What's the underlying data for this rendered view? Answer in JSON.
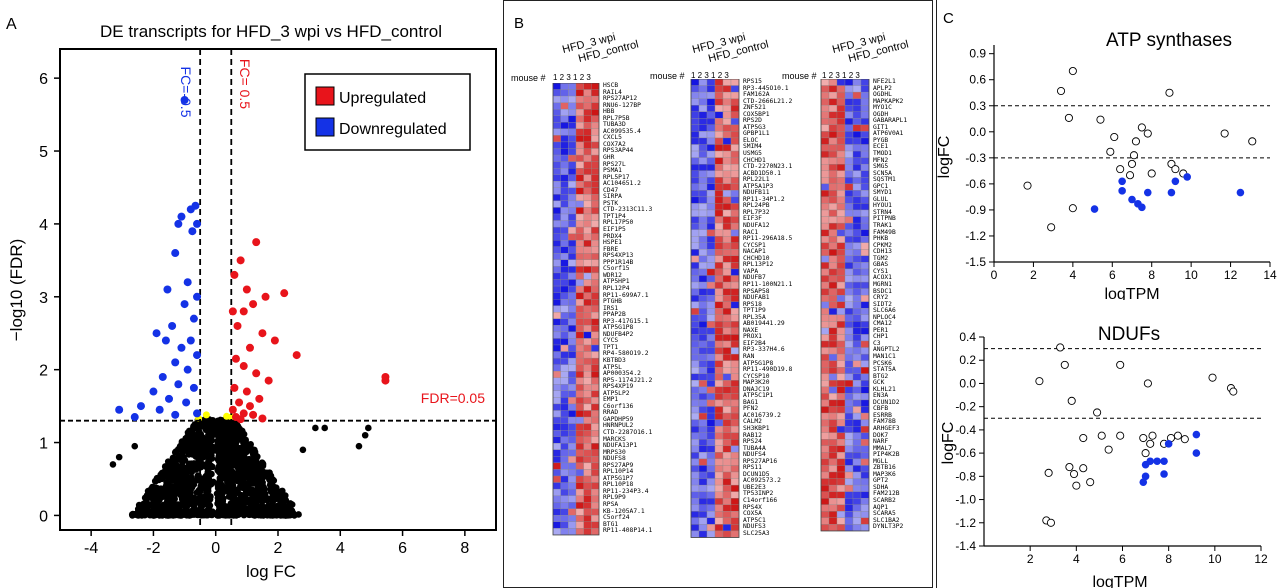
{
  "panel_labels": {
    "a": "A",
    "b": "B",
    "c": "C"
  },
  "chart_data": [
    {
      "type": "scatter",
      "title": "DE transcripts for HFD_3 wpi vs HFD_control",
      "xlabel": "log FC",
      "ylabel": "−log10 (FDR)",
      "xlim": [
        -5,
        9
      ],
      "ylim": [
        -0.2,
        6.4
      ],
      "xticks": [
        "-4",
        "-2",
        "0",
        "2",
        "4",
        "6",
        "8"
      ],
      "yticks": [
        "0",
        "1",
        "2",
        "3",
        "4",
        "5",
        "6"
      ],
      "legend": {
        "placement": "top-right",
        "entries": [
          {
            "name": "Upregulated",
            "color": "#e8141b"
          },
          {
            "name": "Downregulated",
            "color": "#1432e6"
          }
        ]
      },
      "annotations": {
        "fc_neg": "FC=-0.5",
        "fc_pos": "FC= 0.5",
        "fdr": "FDR=0.05"
      },
      "thresholds": {
        "fc": 0.5,
        "fdr_y": 1.3
      },
      "up_points": [
        [
          0.8,
          3.5
        ],
        [
          1.3,
          3.75
        ],
        [
          0.6,
          3.3
        ],
        [
          1.0,
          3.1
        ],
        [
          1.6,
          3.0
        ],
        [
          2.2,
          3.05
        ],
        [
          2.6,
          2.2
        ],
        [
          5.45,
          1.9
        ],
        [
          5.45,
          1.85
        ],
        [
          1.2,
          2.9
        ],
        [
          0.9,
          2.8
        ],
        [
          0.55,
          2.8
        ],
        [
          0.7,
          2.6
        ],
        [
          1.5,
          2.5
        ],
        [
          1.9,
          2.4
        ],
        [
          1.1,
          2.3
        ],
        [
          0.65,
          2.15
        ],
        [
          0.9,
          2.05
        ],
        [
          1.3,
          1.95
        ],
        [
          1.7,
          1.85
        ],
        [
          0.6,
          1.75
        ],
        [
          1.0,
          1.7
        ],
        [
          1.4,
          1.6
        ],
        [
          0.75,
          1.55
        ],
        [
          1.1,
          1.5
        ],
        [
          0.55,
          1.45
        ],
        [
          0.9,
          1.4
        ],
        [
          1.2,
          1.38
        ],
        [
          0.65,
          1.35
        ],
        [
          1.5,
          1.33
        ],
        [
          0.8,
          1.32
        ]
      ],
      "down_points": [
        [
          -1.0,
          5.7
        ],
        [
          -0.65,
          4.25
        ],
        [
          -0.8,
          4.2
        ],
        [
          -0.6,
          4.0
        ],
        [
          -0.75,
          3.9
        ],
        [
          -1.1,
          4.1
        ],
        [
          -1.2,
          4.0
        ],
        [
          -1.3,
          3.6
        ],
        [
          -1.55,
          3.1
        ],
        [
          -0.9,
          3.2
        ],
        [
          -0.6,
          3.0
        ],
        [
          -1.0,
          2.9
        ],
        [
          -0.7,
          2.7
        ],
        [
          -1.4,
          2.6
        ],
        [
          -1.9,
          2.5
        ],
        [
          -1.6,
          2.4
        ],
        [
          -0.8,
          2.4
        ],
        [
          -1.1,
          2.3
        ],
        [
          -0.6,
          2.2
        ],
        [
          -1.3,
          2.1
        ],
        [
          -0.9,
          2.0
        ],
        [
          -1.7,
          1.9
        ],
        [
          -1.2,
          1.8
        ],
        [
          -0.7,
          1.75
        ],
        [
          -2.0,
          1.7
        ],
        [
          -1.5,
          1.6
        ],
        [
          -0.95,
          1.55
        ],
        [
          -2.4,
          1.5
        ],
        [
          -3.1,
          1.45
        ],
        [
          -1.8,
          1.45
        ],
        [
          -0.6,
          1.4
        ],
        [
          -1.3,
          1.38
        ],
        [
          -2.6,
          1.35
        ]
      ]
    },
    {
      "type": "scatter",
      "title": "ATP synthases",
      "xlabel": "logTPM",
      "ylabel": "logFC",
      "xlim": [
        0,
        14
      ],
      "ylim": [
        -1.5,
        1.0
      ],
      "xticks": [
        "0",
        "2",
        "4",
        "6",
        "8",
        "10",
        "12",
        "14"
      ],
      "yticks": [
        "0.9",
        "0.6",
        "0.3",
        "0.0",
        "-0.3",
        "-0.6",
        "-0.9",
        "-1.2",
        "-1.5"
      ],
      "hlines": [
        0.3,
        -0.3
      ],
      "open_points": [
        [
          4.0,
          0.7
        ],
        [
          3.4,
          0.47
        ],
        [
          8.9,
          0.45
        ],
        [
          3.8,
          0.16
        ],
        [
          5.4,
          0.14
        ],
        [
          7.5,
          0.05
        ],
        [
          7.8,
          -0.02
        ],
        [
          11.7,
          -0.02
        ],
        [
          6.1,
          -0.06
        ],
        [
          7.2,
          -0.11
        ],
        [
          13.1,
          -0.11
        ],
        [
          5.9,
          -0.23
        ],
        [
          7.1,
          -0.27
        ],
        [
          7.0,
          -0.37
        ],
        [
          6.4,
          -0.43
        ],
        [
          9.0,
          -0.37
        ],
        [
          9.2,
          -0.43
        ],
        [
          9.6,
          -0.48
        ],
        [
          6.9,
          -0.5
        ],
        [
          8.0,
          -0.48
        ],
        [
          1.7,
          -0.62
        ],
        [
          4.0,
          -0.88
        ],
        [
          2.9,
          -1.1
        ]
      ],
      "filled_points": [
        [
          6.5,
          -0.57
        ],
        [
          9.2,
          -0.57
        ],
        [
          9.8,
          -0.52
        ],
        [
          6.5,
          -0.68
        ],
        [
          7.0,
          -0.78
        ],
        [
          7.8,
          -0.7
        ],
        [
          7.3,
          -0.83
        ],
        [
          7.5,
          -0.87
        ],
        [
          5.1,
          -0.89
        ],
        [
          9.0,
          -0.7
        ],
        [
          12.5,
          -0.7
        ]
      ]
    },
    {
      "type": "scatter",
      "title": "NDUFs",
      "xlabel": "logTPM",
      "ylabel": "logFC",
      "xlim": [
        0,
        12
      ],
      "ylim": [
        -1.4,
        0.4
      ],
      "xticks": [
        "2",
        "4",
        "6",
        "8",
        "10",
        "12"
      ],
      "yticks": [
        "0.4",
        "0.2",
        "0.0",
        "-0.2",
        "-0.4",
        "-0.6",
        "-0.8",
        "-1.0",
        "-1.2",
        "-1.4"
      ],
      "hlines": [
        0.3,
        -0.3
      ],
      "open_points": [
        [
          3.3,
          0.31
        ],
        [
          3.5,
          0.16
        ],
        [
          5.9,
          0.16
        ],
        [
          9.9,
          0.05
        ],
        [
          2.4,
          0.02
        ],
        [
          7.1,
          0.0
        ],
        [
          10.7,
          -0.04
        ],
        [
          10.8,
          -0.07
        ],
        [
          3.8,
          -0.15
        ],
        [
          4.9,
          -0.25
        ],
        [
          4.3,
          -0.47
        ],
        [
          5.1,
          -0.45
        ],
        [
          5.9,
          -0.45
        ],
        [
          6.9,
          -0.47
        ],
        [
          7.3,
          -0.45
        ],
        [
          8.1,
          -0.47
        ],
        [
          8.4,
          -0.45
        ],
        [
          8.7,
          -0.48
        ],
        [
          7.2,
          -0.52
        ],
        [
          7.8,
          -0.52
        ],
        [
          7.0,
          -0.6
        ],
        [
          5.4,
          -0.57
        ],
        [
          3.7,
          -0.72
        ],
        [
          4.3,
          -0.73
        ],
        [
          2.8,
          -0.77
        ],
        [
          3.9,
          -0.78
        ],
        [
          4.6,
          -0.85
        ],
        [
          4.0,
          -0.88
        ],
        [
          2.7,
          -1.18
        ],
        [
          2.9,
          -1.2
        ]
      ],
      "filled_points": [
        [
          9.2,
          -0.44
        ],
        [
          8.0,
          -0.52
        ],
        [
          9.2,
          -0.6
        ],
        [
          7.2,
          -0.67
        ],
        [
          7.5,
          -0.67
        ],
        [
          7.8,
          -0.67
        ],
        [
          7.0,
          -0.7
        ],
        [
          7.8,
          -0.78
        ],
        [
          7.0,
          -0.8
        ],
        [
          6.9,
          -0.85
        ]
      ]
    }
  ],
  "heatmaps": {
    "col_header": {
      "group1": "HFD_3 wpi",
      "group2": "HFD_control",
      "mouse_label": "mouse #",
      "numbers": "1 2 3 1 2 3"
    },
    "col1_genes": [
      "HSCB",
      "RAIL4",
      "RPS27AP12",
      "RNU6-127BP",
      "HBB",
      "RPL7P5B",
      "TUBA3D",
      "AC099535.4",
      "CXCL5",
      "COX7A2",
      "RPS3AP44",
      "GHR",
      "RPS27L",
      "PSMA1",
      "RPL5P17",
      "AC104651.2",
      "CD47",
      "SIRPA",
      "PSTK",
      "CTD-2313C11.3",
      "TPT1P4",
      "RPL17P50",
      "EIF1P5",
      "PRDX4",
      "HSPE1",
      "FBRE",
      "RPS4XP13",
      "PPP1R14B",
      "C5orf15",
      "WDR12",
      "ATP5HP1",
      "RPL12P4",
      "RP11-699A7.1",
      "PTGHB",
      "IRS1",
      "PPAP2B",
      "RP3-417G15.1",
      "ATP5G1P8",
      "NDUFB4P2",
      "CYCS",
      "TPT1",
      "RP4-580O19.2",
      "KBTBD3",
      "ATP5L",
      "AP000354.2",
      "RP5-1174J21.2",
      "RPS4XP19",
      "ATP5LP2",
      "EMP1",
      "C6orf136",
      "RRAD",
      "GAPDHP59",
      "HNRNPUL2",
      "CTD-2287O16.1",
      "MARCKS",
      "NDUFA13P1",
      "MRPS30",
      "NDUFS8",
      "RPS27AP9",
      "RPL10P14",
      "ATP5G1P7",
      "RPL10P18",
      "RP11-234P3.4",
      "RPL9P9",
      "RPSA",
      "KB-1205A7.1",
      "C5orf24",
      "BTG1",
      "RP11-408P14.1"
    ],
    "col2_genes": [
      "RPS15",
      "RP3-445O10.1",
      "FAM162A",
      "CTD-2666L21.2",
      "ZNF521",
      "COX5BP1",
      "RPS2D",
      "ATP5G3",
      "GPBP1L1",
      "ELOC",
      "SMIM4",
      "USMG5",
      "CHCHD1",
      "CTD-2270N23.1",
      "ACBD1D50.1",
      "RPL22L1",
      "ATP5A1P3",
      "NDUFB11",
      "RP11-34P1.2",
      "RPL24PB",
      "RPL7P32",
      "EIF3F",
      "NDUFA12",
      "RAC1",
      "RP11-296A18.5",
      "CYCSP1",
      "NACAP1",
      "CHCHD10",
      "RPL13P12",
      "VAPA",
      "NDUFB7",
      "RP11-100N21.1",
      "RPSAP58",
      "NDUFAB1",
      "RPS18",
      "TPT1P9",
      "RPL35A",
      "AB019441.29",
      "NAXE",
      "PROX1",
      "EIF2B4",
      "RP3-337H4.6",
      "RAN",
      "ATP5G1P8",
      "RP11-490D19.8",
      "CYCSP10",
      "MAP3K20",
      "DNAJC19",
      "ATP5C1P1",
      "BAG1",
      "PFN2",
      "AC016739.2",
      "CALM2",
      "SH3KBP1",
      "RAB12",
      "RPS24",
      "TUBA4A",
      "NDUFS4",
      "RPS27AP16",
      "RPS11",
      "DCUN1D5",
      "AC092573.2",
      "UBE2E3",
      "TP53INP2",
      "C14orf166",
      "RPS4X",
      "COX5A",
      "ATP5C1",
      "NDUFS3",
      "SLC25A3"
    ],
    "col3_genes": [
      "NFE2L1",
      "APLP2",
      "OGDHL",
      "MAPKAPK2",
      "MYO1C",
      "OGDH",
      "GABARAPL1",
      "GIT1",
      "ATP6V0A1",
      "PYGB",
      "ECE1",
      "TMOD1",
      "MFN2",
      "SMG5",
      "SCN5A",
      "SQSTM1",
      "GPC1",
      "SMYD1",
      "GLUL",
      "HYOU1",
      "STRN4",
      "PITPNB",
      "TRAK1",
      "FAM49B",
      "PHKB",
      "CPKM2",
      "CDH13",
      "TGM2",
      "GBAS",
      "CYS1",
      "ACOX1",
      "MGRN1",
      "BSDC1",
      "CRY2",
      "SIDT2",
      "SLC6A6",
      "NPLOC4",
      "CMA12",
      "PER1",
      "CHP1",
      "C3",
      "ANGPTL2",
      "MAN1C1",
      "PCSK6",
      "STAT5A",
      "BTG2",
      "GCK",
      "KLHL21",
      "EN3A",
      "DCUN1D2",
      "CBFB",
      "ESRRB",
      "FAM78B",
      "ARHGEF3",
      "DOK7",
      "NARF",
      "MMAL7",
      "PIP4K2B",
      "MGLL",
      "ZBTB16",
      "MAP3K6",
      "GPT2",
      "SDHA",
      "FAM212B",
      "SCARB2",
      "AQP1",
      "SCARA5",
      "SLC1BA2",
      "DYNLT3P2"
    ]
  },
  "colors": {
    "up": "#e8141b",
    "down": "#1432e6",
    "nonsig": "#000000",
    "highlight": "#ffff00"
  }
}
